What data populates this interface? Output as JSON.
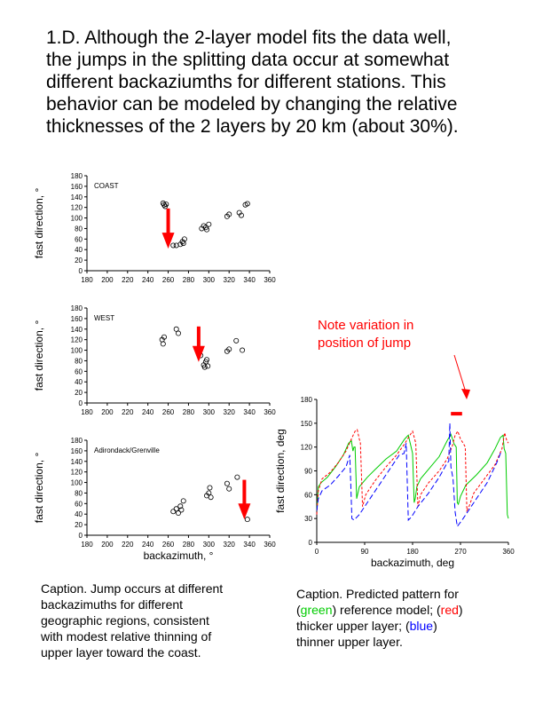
{
  "heading": {
    "lines": [
      "1.D. Although the 2-layer model fits the data well,",
      "the jumps in the splitting data occur at somewhat",
      "different backaziumths for different stations. This",
      "behavior can be modeled by changing the relative",
      "thicknesses of the 2 layers by 20 km (about 30%)."
    ]
  },
  "note": {
    "lines": [
      "Note variation in",
      "position of jump"
    ]
  },
  "caption_left": {
    "lines": [
      "Caption. Jump occurs at different",
      "backazimuths for different",
      "geographic regions, consistent",
      "with modest relative thinning of",
      "upper layer toward the coast."
    ]
  },
  "caption_right": {
    "line1": "Caption. Predicted pattern for",
    "line2_a": "(",
    "line2_green": "green",
    "line2_b": ") reference model; (",
    "line2_red": "red",
    "line2_c": ")",
    "line3_a": "thicker upper layer; (",
    "line3_blue": "blue",
    "line3_b": ")",
    "line4": "thinner upper layer."
  },
  "colors": {
    "green": "#00cc00",
    "red": "#ff0000",
    "blue": "#0000ff",
    "arrow": "#ff0000"
  },
  "chart_data": [
    {
      "type": "scatter",
      "label": "COAST",
      "ylabel": "fast direction, °",
      "xlabel": "",
      "xlim": [
        180,
        360
      ],
      "ylim": [
        0,
        180
      ],
      "xticks": [
        180,
        200,
        220,
        240,
        260,
        280,
        300,
        320,
        340,
        360
      ],
      "yticks": [
        0,
        20,
        40,
        60,
        80,
        100,
        120,
        140,
        160,
        180
      ],
      "points": [
        [
          255,
          128
        ],
        [
          256,
          125
        ],
        [
          257,
          122
        ],
        [
          258,
          126
        ],
        [
          265,
          48
        ],
        [
          268,
          48
        ],
        [
          272,
          50
        ],
        [
          274,
          55
        ],
        [
          275,
          52
        ],
        [
          276,
          60
        ],
        [
          293,
          80
        ],
        [
          295,
          85
        ],
        [
          297,
          82
        ],
        [
          298,
          78
        ],
        [
          300,
          88
        ],
        [
          318,
          103
        ],
        [
          320,
          107
        ],
        [
          330,
          110
        ],
        [
          332,
          105
        ],
        [
          336,
          125
        ],
        [
          338,
          127
        ]
      ],
      "arrow": {
        "x": 260,
        "y_from": 118,
        "y_to": 52
      }
    },
    {
      "type": "scatter",
      "label": "WEST",
      "ylabel": "fast direction, °",
      "xlabel": "",
      "xlim": [
        180,
        360
      ],
      "ylim": [
        0,
        180
      ],
      "xticks": [
        180,
        200,
        220,
        240,
        260,
        280,
        300,
        320,
        340,
        360
      ],
      "yticks": [
        0,
        20,
        40,
        60,
        80,
        100,
        120,
        140,
        160,
        180
      ],
      "points": [
        [
          254,
          120
        ],
        [
          255,
          112
        ],
        [
          256,
          125
        ],
        [
          268,
          140
        ],
        [
          270,
          132
        ],
        [
          290,
          95
        ],
        [
          292,
          90
        ],
        [
          295,
          72
        ],
        [
          296,
          68
        ],
        [
          297,
          78
        ],
        [
          298,
          82
        ],
        [
          299,
          70
        ],
        [
          318,
          98
        ],
        [
          320,
          102
        ],
        [
          327,
          118
        ],
        [
          333,
          100
        ]
      ],
      "arrow": {
        "x": 290,
        "y_from": 145,
        "y_to": 88
      }
    },
    {
      "type": "scatter",
      "label": "Adirondack/Grenville",
      "ylabel": "fast direction, °",
      "xlabel": "backazimuth, °",
      "xlim": [
        180,
        360
      ],
      "ylim": [
        0,
        180
      ],
      "xticks": [
        180,
        200,
        220,
        240,
        260,
        280,
        300,
        320,
        340,
        360
      ],
      "yticks": [
        0,
        20,
        40,
        60,
        80,
        100,
        120,
        140,
        160,
        180
      ],
      "points": [
        [
          265,
          45
        ],
        [
          268,
          50
        ],
        [
          270,
          42
        ],
        [
          272,
          55
        ],
        [
          273,
          48
        ],
        [
          275,
          65
        ],
        [
          298,
          75
        ],
        [
          300,
          80
        ],
        [
          301,
          90
        ],
        [
          302,
          72
        ],
        [
          318,
          98
        ],
        [
          320,
          88
        ],
        [
          328,
          110
        ],
        [
          338,
          30
        ]
      ],
      "arrow": {
        "x": 335,
        "y_from": 105,
        "y_to": 40
      }
    },
    {
      "type": "line",
      "xlabel": "backazimuth, deg",
      "ylabel": "fast direction, deg",
      "xlim": [
        0,
        360
      ],
      "ylim": [
        0,
        180
      ],
      "xticks": [
        0,
        90,
        180,
        270,
        360
      ],
      "yticks": [
        0,
        30,
        60,
        90,
        120,
        150,
        180
      ],
      "series": [
        {
          "color": "green",
          "x": [
            0,
            3,
            8,
            20,
            35,
            50,
            60,
            65,
            68,
            70,
            72,
            75,
            80,
            95,
            110,
            130,
            150,
            165,
            172,
            178,
            180,
            183,
            185,
            188,
            195,
            210,
            230,
            245,
            252,
            258,
            262,
            264,
            266,
            270,
            280,
            300,
            320,
            335,
            345,
            350,
            352,
            355,
            358,
            360
          ],
          "y": [
            40,
            70,
            75,
            82,
            95,
            110,
            125,
            128,
            115,
            120,
            120,
            55,
            70,
            82,
            92,
            105,
            115,
            130,
            135,
            118,
            112,
            50,
            55,
            70,
            80,
            92,
            108,
            128,
            136,
            124,
            120,
            50,
            48,
            58,
            72,
            85,
            100,
            118,
            132,
            135,
            118,
            112,
            35,
            30
          ]
        },
        {
          "color": "red",
          "x": [
            0,
            3,
            10,
            25,
            40,
            55,
            65,
            72,
            76,
            80,
            82,
            86,
            92,
            110,
            130,
            150,
            165,
            175,
            180,
            186,
            190,
            195,
            210,
            230,
            245,
            255,
            260,
            265,
            270,
            275,
            279,
            282,
            286,
            295,
            315,
            335,
            348,
            353,
            357,
            360
          ],
          "y": [
            35,
            65,
            80,
            88,
            100,
            115,
            130,
            140,
            142,
            130,
            125,
            45,
            60,
            78,
            95,
            110,
            124,
            135,
            140,
            125,
            45,
            60,
            75,
            90,
            105,
            122,
            135,
            140,
            130,
            125,
            120,
            40,
            45,
            62,
            80,
            98,
            118,
            138,
            128,
            125
          ]
        },
        {
          "color": "blue",
          "x": [
            0,
            3,
            10,
            25,
            40,
            55,
            62,
            64,
            66,
            70,
            80,
            100,
            120,
            140,
            155,
            164,
            168,
            172,
            178,
            190,
            210,
            230,
            245,
            248,
            250,
            252,
            256,
            260,
            264,
            275,
            300,
            320,
            338,
            345,
            348
          ],
          "y": [
            40,
            55,
            65,
            72,
            83,
            95,
            110,
            72,
            30,
            28,
            35,
            55,
            75,
            95,
            110,
            112,
            125,
            28,
            32,
            45,
            62,
            82,
            100,
            102,
            150,
            95,
            80,
            38,
            20,
            30,
            55,
            75,
            100,
            112,
            115
          ]
        }
      ],
      "marker": {
        "x_from": 252,
        "x_to": 273,
        "y": 162
      }
    }
  ]
}
